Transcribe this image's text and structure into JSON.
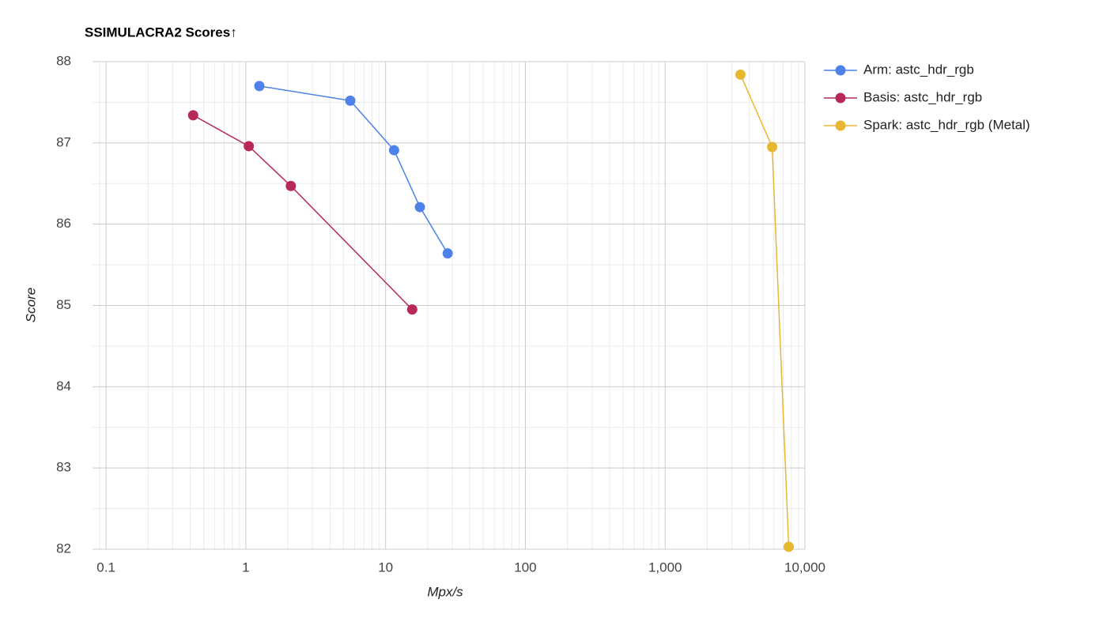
{
  "chart_data": {
    "type": "line",
    "title": "SSIMULACRA2 Scores↑",
    "x_label": "Mpx/s",
    "y_label": "Score",
    "log_x": true,
    "grid": true,
    "xlim": [
      0.08,
      10000
    ],
    "ylim": [
      82,
      88
    ],
    "xticks": [
      0.1,
      1,
      10,
      100,
      {
        "value": 1000,
        "label": "1,000"
      },
      {
        "value": 10000,
        "label": "10,000"
      }
    ],
    "yticks": [
      82,
      83,
      84,
      85,
      86,
      87,
      88
    ],
    "xminorticks": [
      0.09,
      0.2,
      0.3,
      0.4,
      0.5,
      0.6,
      0.7,
      0.8,
      0.9,
      2,
      3,
      4,
      5,
      6,
      7,
      8,
      9,
      20,
      30,
      40,
      50,
      60,
      70,
      80,
      90,
      200,
      300,
      400,
      500,
      600,
      700,
      800,
      900,
      2000,
      3000,
      4000,
      5000,
      6000,
      7000,
      8000,
      9000
    ],
    "yminorticks": [
      82.5,
      83.5,
      84.5,
      85.5,
      86.5,
      87.5
    ],
    "legend": "right",
    "series": [
      {
        "name": "Arm: astc_hdr_rgb",
        "color": "#4f82e9",
        "x": [
          1.25,
          5.59,
          11.5,
          17.6,
          27.8
        ],
        "values": [
          87.7,
          87.52,
          86.91,
          86.21,
          85.64
        ]
      },
      {
        "name": "Basis: astc_hdr_rgb",
        "color": "#b7295a",
        "x": [
          0.42,
          1.05,
          2.1,
          15.5
        ],
        "values": [
          87.34,
          86.96,
          86.47,
          84.95
        ]
      },
      {
        "name": "Spark: astc_hdr_rgb (Metal)",
        "color": "#e8b730",
        "x": [
          3460,
          5830,
          7660
        ],
        "values": [
          87.84,
          86.95,
          82.03
        ]
      }
    ]
  }
}
